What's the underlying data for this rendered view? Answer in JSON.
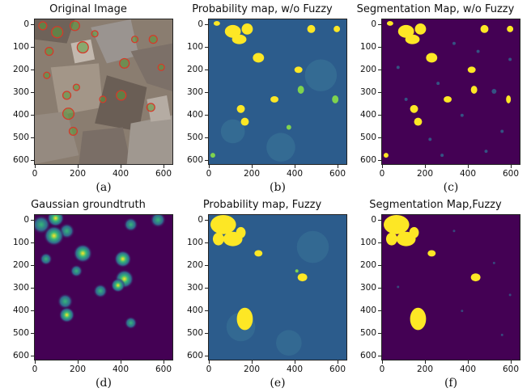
{
  "panels": [
    {
      "title": "Original Image",
      "caption": "(a)"
    },
    {
      "title": "Probability map, w/o Fuzzy",
      "caption": "(b)"
    },
    {
      "title": "Segmentation Map, w/o Fuzzy",
      "caption": "(c)"
    },
    {
      "title": "Gaussian groundtruth",
      "caption": "(d)"
    },
    {
      "title": "Probability map, Fuzzy",
      "caption": "(e)"
    },
    {
      "title": "Segmentation Map,Fuzzy",
      "caption": "(f)"
    }
  ],
  "axes": {
    "x_ticks": [
      "0",
      "200",
      "400",
      "600"
    ],
    "y_ticks": [
      "0",
      "100",
      "200",
      "300",
      "400",
      "500",
      "600"
    ]
  },
  "colors": {
    "viridis_low": "#440154",
    "viridis_mid": "#2c5c8c",
    "viridis_high": "#fde725",
    "marker": "#d43a2a",
    "marker_fill": "#5a9a3a"
  }
}
